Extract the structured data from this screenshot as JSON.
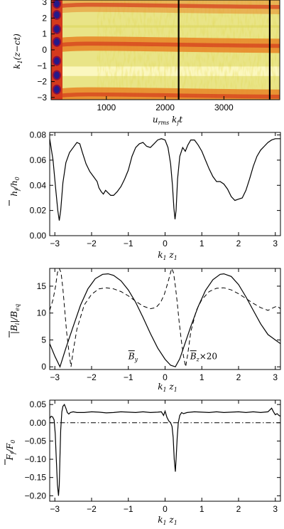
{
  "chart_data": [
    {
      "type": "heatmap",
      "xlabel": "u_rms k_f t",
      "ylabel": "k_1(z−ct)",
      "xlim": [
        60,
        3950
      ],
      "ylim": [
        -3.14,
        3.14
      ],
      "xticks": [
        "1000",
        "2000",
        "3000"
      ],
      "yticks": [
        "3",
        "2",
        "1",
        "0",
        "−1",
        "−2",
        "−3"
      ],
      "vertical_lines_x": [
        2230,
        3780
      ],
      "colormap": [
        "#fffee0",
        "#f7ee8a",
        "#dbd65a",
        "#e88a2a",
        "#d43a1c",
        "#8a1040",
        "#241a8a"
      ],
      "bands": [
        {
          "center": -2.95,
          "width": 0.1,
          "level": "orange"
        },
        {
          "center": 0.25,
          "width": 0.1,
          "level": "orange"
        },
        {
          "center": 2.7,
          "width": 0.1,
          "level": "orange-fading"
        }
      ],
      "early_blobs_y": [
        -2.5,
        -1.6,
        -0.7,
        0.5,
        1.3,
        2.2,
        2.9
      ]
    },
    {
      "type": "line",
      "xlabel": "k_1 z_1",
      "ylabel": "h_f/h_0",
      "xlim": [
        -3.14,
        3.14
      ],
      "ylim": [
        0.0,
        0.082
      ],
      "xticks": [
        "−3",
        "−2",
        "−1",
        "0",
        "1",
        "2",
        "3"
      ],
      "yticks": [
        "0.00",
        "0.02",
        "0.04",
        "0.06",
        "0.08"
      ],
      "x": [
        -3.14,
        -3.05,
        -2.97,
        -2.92,
        -2.88,
        -2.84,
        -2.78,
        -2.7,
        -2.6,
        -2.5,
        -2.4,
        -2.32,
        -2.25,
        -2.15,
        -2.05,
        -1.95,
        -1.85,
        -1.8,
        -1.74,
        -1.68,
        -1.62,
        -1.55,
        -1.48,
        -1.4,
        -1.3,
        -1.2,
        -1.1,
        -1.0,
        -0.9,
        -0.8,
        -0.7,
        -0.6,
        -0.5,
        -0.4,
        -0.3,
        -0.2,
        -0.1,
        0.0,
        0.08,
        0.15,
        0.2,
        0.24,
        0.27,
        0.3,
        0.34,
        0.4,
        0.48,
        0.55,
        0.62,
        0.7,
        0.8,
        0.9,
        1.0,
        1.1,
        1.2,
        1.3,
        1.4,
        1.5,
        1.6,
        1.7,
        1.8,
        1.9,
        2.0,
        2.1,
        2.2,
        2.3,
        2.4,
        2.5,
        2.6,
        2.7,
        2.8,
        2.9,
        3.0,
        3.14
      ],
      "y": [
        0.077,
        0.06,
        0.035,
        0.02,
        0.012,
        0.02,
        0.042,
        0.058,
        0.066,
        0.07,
        0.074,
        0.073,
        0.066,
        0.057,
        0.051,
        0.047,
        0.043,
        0.038,
        0.035,
        0.033,
        0.036,
        0.034,
        0.032,
        0.032,
        0.035,
        0.039,
        0.045,
        0.052,
        0.063,
        0.07,
        0.073,
        0.074,
        0.071,
        0.07,
        0.073,
        0.076,
        0.077,
        0.076,
        0.07,
        0.057,
        0.04,
        0.022,
        0.013,
        0.02,
        0.045,
        0.063,
        0.07,
        0.067,
        0.072,
        0.076,
        0.076,
        0.072,
        0.067,
        0.06,
        0.053,
        0.047,
        0.043,
        0.043,
        0.041,
        0.037,
        0.031,
        0.028,
        0.029,
        0.03,
        0.036,
        0.045,
        0.055,
        0.063,
        0.068,
        0.071,
        0.074,
        0.076,
        0.077,
        0.077
      ]
    },
    {
      "type": "line",
      "xlabel": "k_1 z_1",
      "ylabel": "|B_i|/B_eq",
      "xlim": [
        -3.14,
        3.14
      ],
      "ylim": [
        -0.5,
        18.3
      ],
      "xticks": [
        "−3",
        "−2",
        "−1",
        "0",
        "1",
        "2",
        "3"
      ],
      "yticks": [
        "0",
        "5",
        "10",
        "15"
      ],
      "series": [
        {
          "name": "B_y",
          "style": "solid",
          "x": [
            -3.14,
            -3.0,
            -2.86,
            -2.7,
            -2.5,
            -2.3,
            -2.1,
            -1.9,
            -1.7,
            -1.55,
            -1.4,
            -1.2,
            -1.0,
            -0.8,
            -0.6,
            -0.4,
            -0.2,
            0.0,
            0.15,
            0.28,
            0.4,
            0.55,
            0.7,
            0.9,
            1.1,
            1.3,
            1.5,
            1.6,
            1.8,
            2.0,
            2.2,
            2.4,
            2.6,
            2.8,
            3.0,
            3.14
          ],
          "y": [
            4.3,
            2.0,
            0.0,
            3.5,
            7.5,
            11.5,
            14.5,
            16.4,
            17.2,
            17.3,
            17.0,
            16.0,
            14.3,
            12.0,
            9.2,
            6.2,
            3.5,
            1.4,
            0.3,
            0.0,
            1.5,
            4.5,
            7.5,
            11.2,
            14.2,
            16.2,
            17.2,
            17.3,
            16.8,
            15.3,
            13.0,
            10.5,
            8.0,
            6.0,
            5.0,
            4.3
          ]
        },
        {
          "name": "B_z×20",
          "style": "dashed",
          "x": [
            -3.14,
            -3.05,
            -2.98,
            -2.93,
            -2.88,
            -2.83,
            -2.78,
            -2.73,
            -2.68,
            -2.62,
            -2.56,
            -2.5,
            -2.4,
            -2.2,
            -2.0,
            -1.8,
            -1.6,
            -1.4,
            -1.2,
            -1.0,
            -0.8,
            -0.6,
            -0.4,
            -0.25,
            -0.12,
            -0.02,
            0.07,
            0.13,
            0.18,
            0.23,
            0.28,
            0.33,
            0.38,
            0.44,
            0.5,
            0.56,
            0.62,
            0.7,
            0.85,
            1.0,
            1.2,
            1.4,
            1.6,
            1.8,
            2.0,
            2.2,
            2.4,
            2.6,
            2.8,
            2.95,
            3.05,
            3.14
          ],
          "y": [
            10.5,
            12.5,
            15.0,
            17.5,
            18.3,
            17.5,
            14.5,
            10.5,
            6.5,
            3.0,
            0.0,
            3.0,
            7.0,
            11.5,
            13.5,
            14.5,
            14.7,
            14.5,
            14.0,
            13.2,
            12.2,
            11.3,
            10.8,
            11.0,
            12.0,
            13.5,
            15.5,
            17.0,
            18.3,
            17.5,
            15.0,
            12.0,
            8.5,
            5.0,
            2.0,
            0.0,
            2.5,
            6.5,
            10.5,
            12.5,
            14.0,
            14.6,
            14.7,
            14.3,
            13.6,
            12.7,
            11.8,
            11.0,
            10.5,
            11.0,
            11.3,
            10.8
          ]
        }
      ],
      "annotations": [
        {
          "text": "B_y",
          "x": -1.0,
          "y": 1.4
        },
        {
          "text": "B_z×20",
          "x": 0.68,
          "y": 1.4
        }
      ]
    },
    {
      "type": "line",
      "xlabel": "k_1 z_1",
      "ylabel": "F_f/F_0",
      "xlim": [
        -3.14,
        3.14
      ],
      "ylim": [
        -0.215,
        0.062
      ],
      "xticks": [
        "−3",
        "−2",
        "−1",
        "0",
        "1",
        "2",
        "3"
      ],
      "yticks": [
        "0.05",
        "0.00",
        "−0.05",
        "−0.10",
        "−0.15",
        "−0.20"
      ],
      "reference_line": {
        "y": 0.0,
        "style": "dash-dot"
      },
      "x": [
        -3.14,
        -3.1,
        -3.06,
        -3.02,
        -2.99,
        -2.96,
        -2.93,
        -2.9,
        -2.88,
        -2.86,
        -2.84,
        -2.81,
        -2.78,
        -2.74,
        -2.7,
        -2.66,
        -2.62,
        -2.58,
        -2.5,
        -2.4,
        -2.2,
        -2.0,
        -1.8,
        -1.6,
        -1.4,
        -1.2,
        -1.0,
        -0.8,
        -0.6,
        -0.4,
        -0.2,
        -0.1,
        -0.04,
        0.0,
        0.05,
        0.1,
        0.15,
        0.19,
        0.22,
        0.25,
        0.28,
        0.3,
        0.33,
        0.36,
        0.4,
        0.45,
        0.5,
        0.6,
        0.8,
        1.0,
        1.2,
        1.4,
        1.6,
        1.8,
        2.0,
        2.2,
        2.4,
        2.6,
        2.8,
        2.9,
        2.95,
        3.0,
        3.05,
        3.1,
        3.14
      ],
      "y": [
        0.012,
        0.018,
        0.016,
        0.008,
        -0.03,
        -0.1,
        -0.17,
        -0.2,
        -0.17,
        -0.09,
        -0.02,
        0.03,
        0.045,
        0.05,
        0.04,
        0.028,
        0.024,
        0.028,
        0.03,
        0.028,
        0.028,
        0.03,
        0.029,
        0.027,
        0.028,
        0.03,
        0.029,
        0.028,
        0.03,
        0.028,
        0.029,
        0.03,
        0.02,
        0.032,
        0.015,
        0.005,
        0.0,
        -0.01,
        -0.04,
        -0.1,
        -0.134,
        -0.1,
        -0.04,
        0.0,
        0.02,
        0.028,
        0.025,
        0.028,
        0.03,
        0.029,
        0.028,
        0.03,
        0.028,
        0.029,
        0.03,
        0.028,
        0.03,
        0.028,
        0.03,
        0.04,
        0.03,
        0.022,
        0.025,
        0.02,
        0.018
      ]
    }
  ]
}
